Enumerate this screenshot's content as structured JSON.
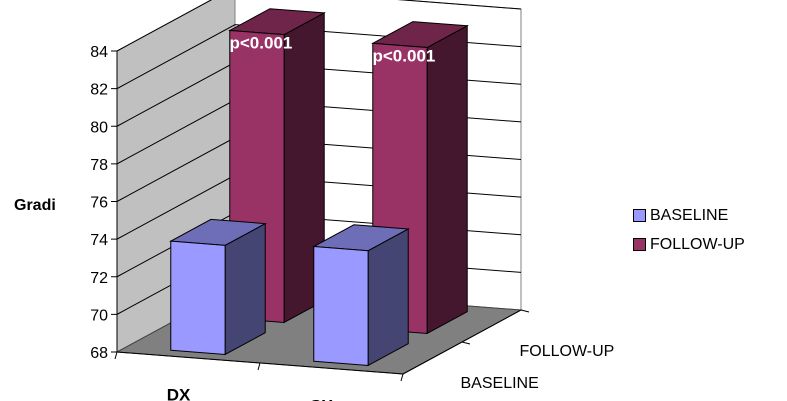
{
  "chart_data": {
    "type": "bar",
    "categories": [
      "DX",
      "SX"
    ],
    "series": [
      {
        "name": "BASELINE",
        "values": [
          73.8,
          74.1
        ],
        "color": "#9999ff"
      },
      {
        "name": "FOLLOW-UP",
        "values": [
          83.3,
          83.2
        ],
        "color": "#993366"
      }
    ],
    "depth_labels": [
      "BASELINE",
      "FOLLOW-UP"
    ],
    "ylabel": "Gradi",
    "ylim": [
      68,
      84
    ],
    "yticks": [
      68,
      70,
      72,
      74,
      76,
      78,
      80,
      82,
      84
    ],
    "data_labels": [
      "p<0.001",
      "p<0.001"
    ],
    "grid": true,
    "legend_position": "right"
  }
}
